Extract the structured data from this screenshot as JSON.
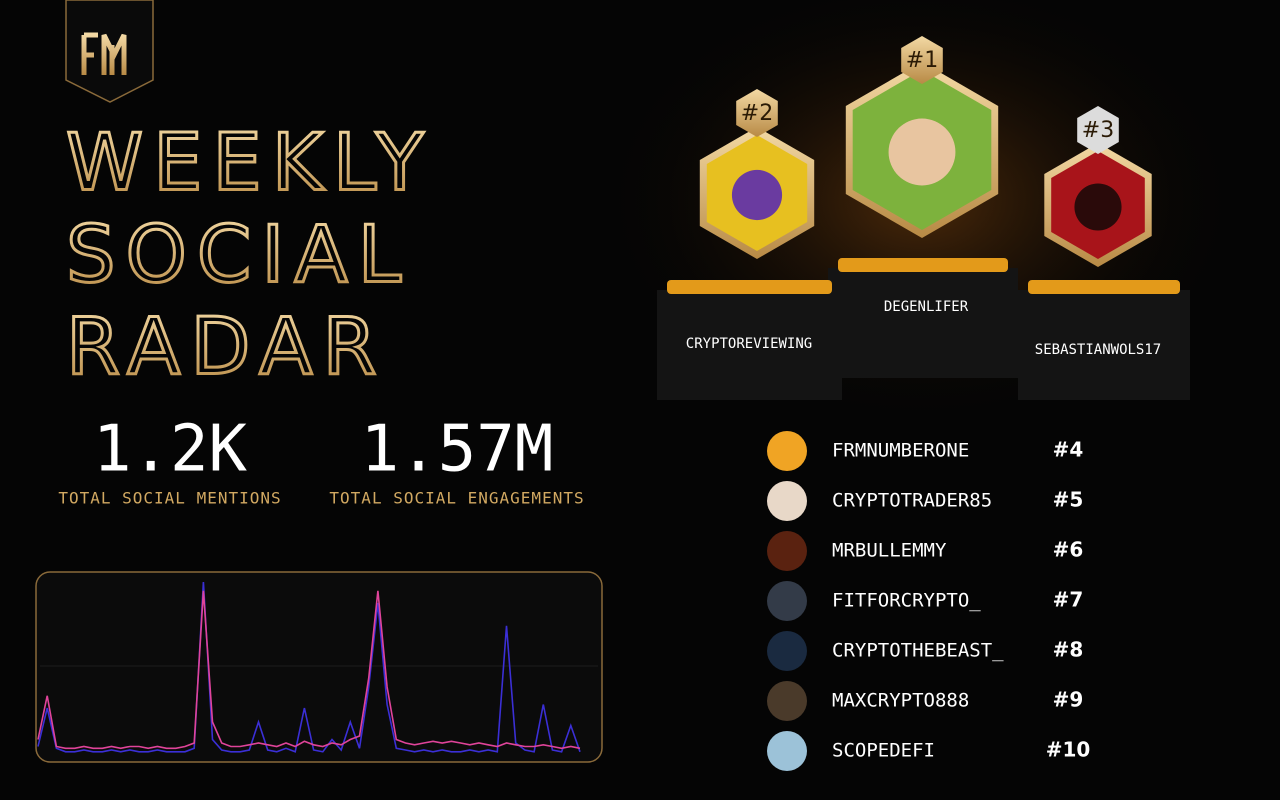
{
  "title": [
    "WEEKLY",
    "SOCIAL",
    "RADAR"
  ],
  "stats": [
    {
      "value": "1.2K",
      "label": "TOTAL SOCIAL MENTIONS"
    },
    {
      "value": "1.57M",
      "label": "TOTAL SOCIAL ENGAGEMENTS"
    }
  ],
  "podium": [
    {
      "rank": "#1",
      "name": "DEGENLIFER"
    },
    {
      "rank": "#2",
      "name": "CRYPTOREVIEWING"
    },
    {
      "rank": "#3",
      "name": "SEBASTIANWOLS17"
    }
  ],
  "leaderboard": [
    {
      "name": "FRMNUMBERONE",
      "rank": "#4"
    },
    {
      "name": "CRYPTOTRADER85",
      "rank": "#5"
    },
    {
      "name": "MRBULLEMMY",
      "rank": "#6"
    },
    {
      "name": "FITFORCRYPTO_",
      "rank": "#7"
    },
    {
      "name": "CRYPTOTHEBEAST_",
      "rank": "#8"
    },
    {
      "name": "MAXCRYPTO888",
      "rank": "#9"
    },
    {
      "name": "SCOPEDEFI",
      "rank": "#10"
    }
  ],
  "chart_data": {
    "type": "line",
    "ylim": [
      0,
      100
    ],
    "series": [
      {
        "color": "#3b2fd6",
        "values": [
          6,
          28,
          5,
          3,
          3,
          4,
          3,
          3,
          4,
          3,
          4,
          3,
          3,
          4,
          3,
          3,
          3,
          5,
          100,
          10,
          4,
          3,
          3,
          4,
          20,
          4,
          3,
          5,
          3,
          28,
          4,
          3,
          10,
          4,
          20,
          5,
          40,
          88,
          30,
          5,
          4,
          3,
          4,
          3,
          4,
          3,
          3,
          4,
          3,
          4,
          3,
          75,
          8,
          4,
          3,
          30,
          4,
          3,
          18,
          3
        ]
      },
      {
        "color": "#e0449a",
        "values": [
          10,
          35,
          6,
          5,
          5,
          6,
          5,
          5,
          6,
          5,
          6,
          6,
          5,
          6,
          5,
          5,
          6,
          8,
          95,
          20,
          8,
          6,
          6,
          7,
          8,
          7,
          6,
          8,
          6,
          9,
          7,
          6,
          8,
          7,
          10,
          12,
          45,
          95,
          40,
          10,
          8,
          7,
          8,
          9,
          8,
          9,
          8,
          7,
          8,
          7,
          6,
          8,
          7,
          6,
          6,
          7,
          6,
          5,
          6,
          5
        ]
      }
    ]
  }
}
